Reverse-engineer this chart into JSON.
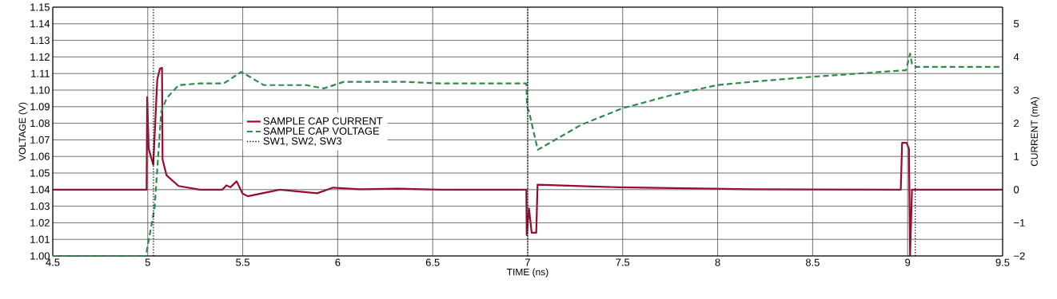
{
  "chart_data": {
    "type": "line",
    "xlabel": "TIME (ns)",
    "ylabel": "VOLTAGE (V)",
    "y2label": "CURRENT (mA)",
    "xlim": [
      4.5,
      9.5
    ],
    "xticks": [
      4.5,
      5,
      5.5,
      6,
      6.5,
      7,
      7.5,
      8,
      8.5,
      9,
      9.5
    ],
    "ylim": [
      1.0,
      1.15
    ],
    "yticks": [
      {
        "value": 1.0,
        "label": "1.00"
      },
      {
        "value": 1.01,
        "label": "1.01"
      },
      {
        "value": 1.02,
        "label": "1.02"
      },
      {
        "value": 1.03,
        "label": "1.03"
      },
      {
        "value": 1.04,
        "label": "1.04"
      },
      {
        "value": 1.05,
        "label": "1.05"
      },
      {
        "value": 1.06,
        "label": "1.06"
      },
      {
        "value": 1.07,
        "label": "1.07"
      },
      {
        "value": 1.08,
        "label": "1.08"
      },
      {
        "value": 1.09,
        "label": "1.09"
      },
      {
        "value": 1.1,
        "label": "1.10"
      },
      {
        "value": 1.11,
        "label": "1.11"
      },
      {
        "value": 1.12,
        "label": "1.12"
      },
      {
        "value": 1.13,
        "label": "1.13"
      },
      {
        "value": 1.14,
        "label": "1.14"
      },
      {
        "value": 1.15,
        "label": "1.15"
      }
    ],
    "y2lim": [
      -2,
      5.5
    ],
    "y2ticks": [
      {
        "value": -2,
        "label": "−2"
      },
      {
        "value": -1,
        "label": "−1"
      },
      0,
      1,
      2,
      3,
      4,
      5
    ],
    "grid": true,
    "legend": "left",
    "series": [
      {
        "name": "SAMPLE CAP CURRENT",
        "color": "#9b0a2e",
        "axis": "y2",
        "line_style": "solid",
        "x": [
          4.5,
          4.994,
          4.997,
          5.005,
          5.029,
          5.05,
          5.064,
          5.075,
          5.078,
          5.099,
          5.162,
          5.274,
          5.393,
          5.414,
          5.435,
          5.468,
          5.499,
          5.527,
          5.695,
          5.892,
          5.976,
          6.116,
          6.312,
          6.537,
          6.993,
          6.995,
          7.007,
          7.021,
          7.045,
          7.052,
          7.477,
          8.178,
          8.964,
          8.971,
          8.995,
          9.007,
          9.013,
          9.023,
          9.063,
          9.5
        ],
        "values": [
          0,
          0,
          2.79,
          1.23,
          0.75,
          3.31,
          3.65,
          3.67,
          0.91,
          0.43,
          0.11,
          0,
          0,
          0.13,
          0.07,
          0.25,
          -0.12,
          -0.2,
          0,
          -0.11,
          0.06,
          0.01,
          0.03,
          0,
          0,
          -1.37,
          -0.57,
          -1.3,
          -1.3,
          0.15,
          0.07,
          0.01,
          0,
          1.41,
          1.41,
          1.23,
          -2,
          0,
          0,
          0
        ]
      },
      {
        "name": "SAMPLE CAP VOLTAGE",
        "color": "#2e8b4a",
        "line_style": "dashed",
        "x": [
          4.5,
          4.99,
          5.036,
          5.071,
          5.099,
          5.162,
          5.274,
          5.4,
          5.492,
          5.611,
          5.835,
          5.927,
          6.032,
          6.355,
          6.537,
          6.993,
          6.997,
          7.007,
          7.053,
          7.28,
          7.498,
          7.758,
          7.996,
          8.178,
          8.494,
          8.992,
          9.013,
          9.023,
          9.041,
          9.5
        ],
        "values": [
          1.0,
          1.0,
          1.029,
          1.087,
          1.095,
          1.103,
          1.104,
          1.104,
          1.111,
          1.103,
          1.103,
          1.101,
          1.105,
          1.105,
          1.104,
          1.104,
          1.09,
          1.087,
          1.064,
          1.079,
          1.089,
          1.097,
          1.103,
          1.105,
          1.108,
          1.112,
          1.122,
          1.116,
          1.114,
          1.114
        ]
      },
      {
        "name": "SW1, SW2, SW3",
        "color": "#000000",
        "line_style": "dotted",
        "x": [
          5.03,
          5.03,
          6,
          7.0,
          7.0,
          8,
          9.04,
          9.04
        ],
        "values": [
          1.0,
          1.15,
          null,
          1.0,
          1.15,
          null,
          1.0,
          1.15
        ]
      }
    ]
  }
}
